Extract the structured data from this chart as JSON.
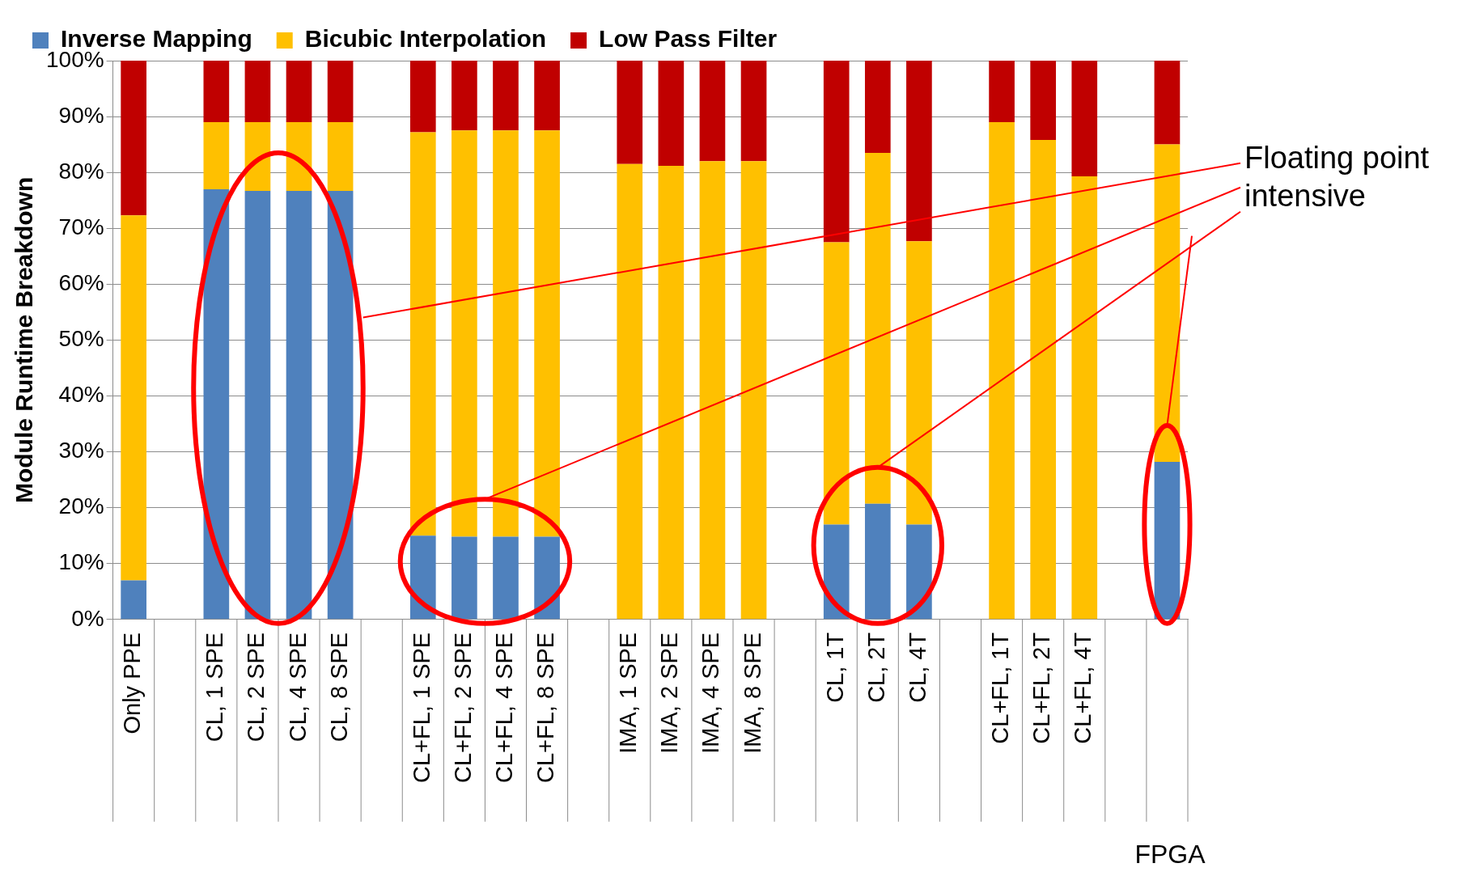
{
  "chart_data": {
    "type": "bar",
    "stacked": true,
    "ylabel": "Module Runtime Breakdown",
    "categories": [
      "Only PPE",
      null,
      "CL, 1 SPE",
      "CL, 2 SPE",
      "CL, 4 SPE",
      "CL, 8 SPE",
      null,
      "CL+FL, 1 SPE",
      "CL+FL, 2 SPE",
      "CL+FL, 4 SPE",
      "CL+FL, 8 SPE",
      null,
      "IMA, 1 SPE",
      "IMA, 2 SPE",
      "IMA, 4 SPE",
      "IMA, 8 SPE",
      null,
      "CL, 1T",
      "CL, 2T",
      "CL, 4T",
      null,
      "CL+FL, 1T",
      "CL+FL, 2T",
      "CL+FL, 4T",
      null,
      null
    ],
    "series": [
      {
        "name": "Inverse Mapping",
        "color": "#4f81bd",
        "values": [
          7,
          null,
          77,
          76.7,
          76.7,
          76.7,
          null,
          15,
          14.8,
          14.8,
          14.8,
          null,
          0,
          0,
          0,
          0,
          null,
          17,
          20.7,
          17,
          null,
          0,
          0,
          0,
          null,
          28.2
        ]
      },
      {
        "name": "Bicubic Interpolation",
        "color": "#ffc000",
        "values": [
          65.3,
          null,
          12,
          12.3,
          12.3,
          12.3,
          null,
          72.2,
          72.7,
          72.7,
          72.7,
          null,
          81.5,
          81.2,
          82,
          82,
          null,
          50.5,
          62.8,
          50.7,
          null,
          89,
          85.8,
          79.3,
          null,
          56.8
        ]
      },
      {
        "name": "Low Pass Filter",
        "color": "#c00000",
        "values": [
          27.7,
          null,
          11,
          11,
          11,
          11,
          null,
          12.8,
          12.5,
          12.5,
          12.5,
          null,
          18.5,
          18.8,
          18,
          18,
          null,
          32.5,
          16.5,
          32.3,
          null,
          11,
          14.2,
          20.7,
          null,
          15
        ]
      }
    ],
    "ylim": [
      0,
      100
    ],
    "yticks": [
      {
        "value": 0,
        "label": "0%"
      },
      {
        "value": 10,
        "label": "10%"
      },
      {
        "value": 20,
        "label": "20%"
      },
      {
        "value": 30,
        "label": "30%"
      },
      {
        "value": 40,
        "label": "40%"
      },
      {
        "value": 50,
        "label": "50%"
      },
      {
        "value": 60,
        "label": "60%"
      },
      {
        "value": 70,
        "label": "70%"
      },
      {
        "value": 80,
        "label": "80%"
      },
      {
        "value": 90,
        "label": "90%"
      },
      {
        "value": 100,
        "label": "100%"
      }
    ],
    "grid": "y",
    "legend": "top",
    "annotations": [
      "Floating point intensive",
      "FPGA"
    ]
  }
}
